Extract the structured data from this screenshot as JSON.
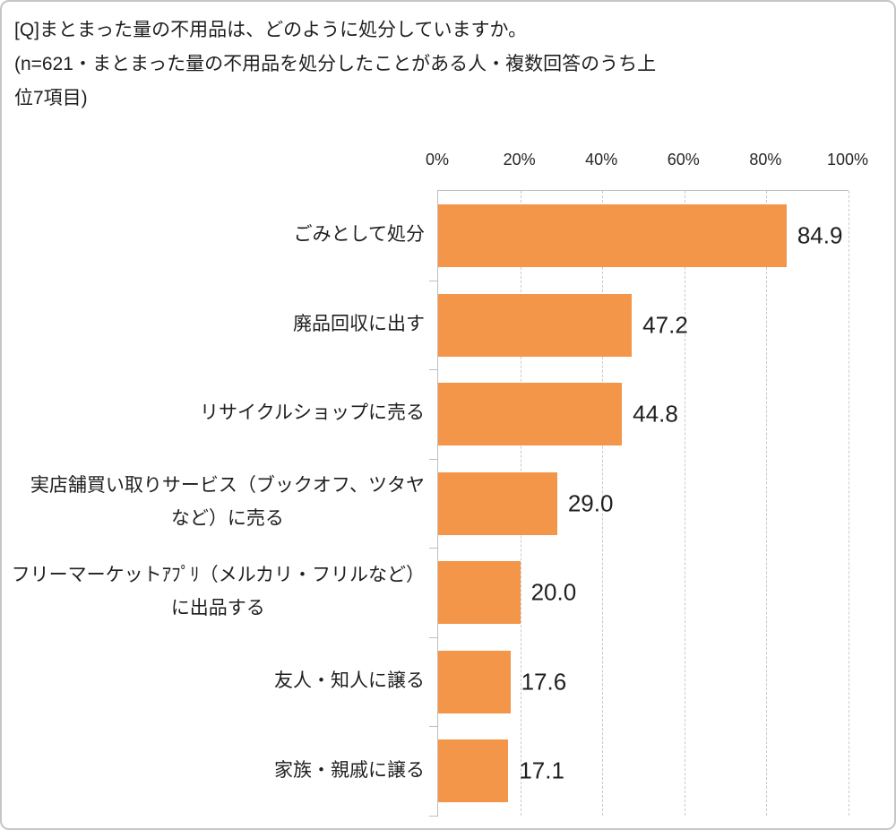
{
  "page": {
    "background": "#ffffff",
    "frame_border_color": "#c6c6c6"
  },
  "title": {
    "lines": [
      "[Q]まとまった量の不用品は、どのように処分していますか。",
      "(n=621・まとまった量の不用品を処分したことがある人・複数回答のうち上",
      "位7項目)"
    ],
    "full_text": "[Q]まとまった量の不用品は、どのように処分していますか。(n=621・まとまった量の不用品を処分したことがある人・複数回答のうち上位7項目)"
  },
  "chart_data": {
    "type": "bar",
    "orientation": "horizontal",
    "title": "[Q]まとまった量の不用品は、どのように処分していますか。",
    "subtitle": "(n=621・まとまった量の不用品を処分したことがある人・複数回答のうち上位7項目)",
    "categories": [
      "ごみとして処分",
      "廃品回収に出す",
      "リサイクルショップに売る",
      "実店舗買い取りサービス（ブックオフ、ツタヤなど）に売る",
      "フリーマーケットｱﾌﾟﾘ（メルカリ・フリルなど）に出品する",
      "友人・知人に譲る",
      "家族・親戚に譲る"
    ],
    "category_display": [
      "ごみとして処分",
      "廃品回収に出す",
      "リサイクルショップに売る",
      "実店舗買い取りサービス（ブックオフ、ツタヤ\nなど）に売る",
      "フリーマーケットｱﾌﾟﾘ（メルカリ・フリルなど）\nに出品する",
      "友人・知人に譲る",
      "家族・親戚に譲る"
    ],
    "values": [
      84.9,
      47.2,
      44.8,
      29.0,
      20.0,
      17.6,
      17.1
    ],
    "value_labels": [
      "84.9",
      "47.2",
      "44.8",
      "29.0",
      "20.0",
      "17.6",
      "17.1"
    ],
    "x_axis": {
      "position": "top",
      "min": 0,
      "max": 100,
      "ticks": [
        "0%",
        "20%",
        "40%",
        "60%",
        "80%",
        "100%"
      ]
    },
    "grid": {
      "vertical": true,
      "style": "dashed",
      "color": "#c9c9c9"
    },
    "legend": "none",
    "bar_color": "#F4964A",
    "axis_line_color": "#bfbfbf"
  }
}
